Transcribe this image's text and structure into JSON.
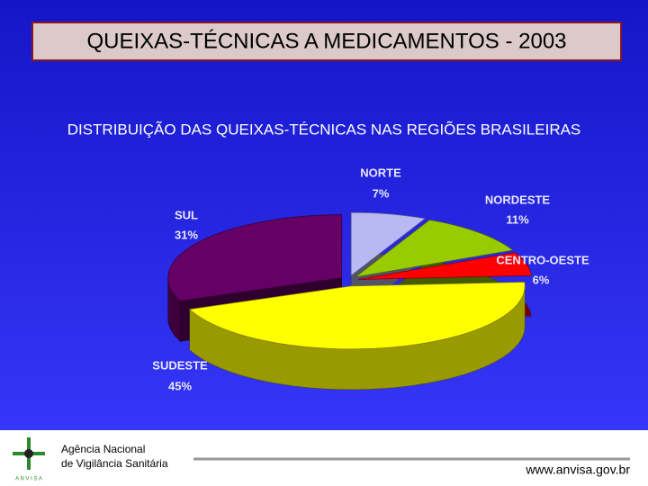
{
  "chart_data": {
    "type": "pie",
    "title": "QUEIXAS-TÉCNICAS A MEDICAMENTOS - 2003",
    "subtitle": "DISTRIBUIÇÃO DAS QUEIXAS-TÉCNICAS NAS REGIÕES BRASILEIRAS",
    "categories": [
      "NORTE",
      "NORDESTE",
      "CENTRO-OESTE",
      "SUDESTE",
      "SUL"
    ],
    "values": [
      7,
      11,
      6,
      45,
      31
    ],
    "value_labels": [
      "7%",
      "11%",
      "6%",
      "45%",
      "31%"
    ],
    "colors": [
      "#b8b8f4",
      "#99cc00",
      "#ff0000",
      "#ffff00",
      "#660066"
    ]
  },
  "footer": {
    "agency_line1": "Agência Nacional",
    "agency_line2": "de Vigilância Sanitária",
    "logo_text": "A N V I S A",
    "url": "www.anvisa.gov.br"
  }
}
